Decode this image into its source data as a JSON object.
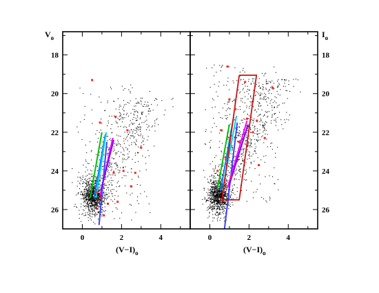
{
  "chart_data": [
    {
      "type": "scatter",
      "panel": "left",
      "xlabel": "(V−I)",
      "xlabel_sub": "o",
      "ylabel": "V",
      "ylabel_sub": "o",
      "ylabel_side": "left",
      "xlim": [
        -1,
        5.5
      ],
      "ylim": [
        27,
        16.8
      ],
      "y_inverted": true,
      "xticks": [
        0,
        2,
        4
      ],
      "yticks": [
        18,
        20,
        22,
        24,
        26
      ],
      "field_stars": {
        "color": "#000000",
        "count_approx": 1500,
        "distribution": "dense clump near (V-I)=0.4-0.9, V=24-26, fanning upward along the RGB to V~20"
      },
      "highlighted_stars": {
        "color": "#ff2020",
        "points": [
          [
            0.5,
            19.3
          ],
          [
            1.7,
            21.2
          ],
          [
            2.3,
            21.9
          ],
          [
            0.9,
            21.5
          ],
          [
            3.0,
            22.8
          ],
          [
            1.6,
            24.1
          ],
          [
            2.1,
            24.0
          ],
          [
            2.7,
            24.1
          ],
          [
            2.5,
            24.8
          ],
          [
            1.8,
            25.6
          ],
          [
            0.7,
            25.1
          ],
          [
            0.9,
            25.4
          ],
          [
            0.7,
            25.9
          ],
          [
            1.1,
            26.3
          ],
          [
            1.3,
            25.7
          ]
        ]
      },
      "isochrones": [
        {
          "color": "#00c000",
          "points": [
            [
              0.4,
              25.4
            ],
            [
              1.0,
              22.0
            ]
          ]
        },
        {
          "color": "#0080ff",
          "points": [
            [
              0.6,
              25.4
            ],
            [
              1.18,
              22.1
            ]
          ]
        },
        {
          "color": "#00d8d8",
          "points": [
            [
              0.7,
              25.4
            ],
            [
              1.22,
              22.0
            ]
          ]
        },
        {
          "color": "#4040ff",
          "points": [
            [
              0.85,
              26.8
            ],
            [
              1.25,
              22.5
            ]
          ]
        },
        {
          "color": "#ff00ff",
          "points": [
            [
              0.9,
              25.3
            ],
            [
              1.55,
              22.3
            ]
          ]
        },
        {
          "color": "#8000ff",
          "points": [
            [
              0.95,
              25.0
            ],
            [
              1.6,
              22.4
            ]
          ]
        }
      ]
    },
    {
      "type": "scatter",
      "panel": "right",
      "xlabel": "(V−I)",
      "xlabel_sub": "o",
      "ylabel": "I",
      "ylabel_sub": "o",
      "ylabel_side": "right",
      "xlim": [
        -1,
        5.5
      ],
      "ylim": [
        27,
        16.8
      ],
      "y_inverted": true,
      "xticks": [
        0,
        2,
        4
      ],
      "yticks": [
        18,
        20,
        22,
        24,
        26
      ],
      "field_stars": {
        "color": "#000000",
        "count_approx": 1700,
        "distribution": "dense clump near (V-I)=0.2-0.8, I=24-26, spreading up along a diagonal toward I~19"
      },
      "highlighted_stars": {
        "color": "#ff2020",
        "points": [
          [
            0.9,
            18.6
          ],
          [
            1.8,
            19.4
          ],
          [
            3.2,
            19.7
          ],
          [
            1.0,
            20.3
          ],
          [
            1.3,
            20.8
          ],
          [
            1.9,
            21.3
          ],
          [
            2.4,
            21.4
          ],
          [
            0.6,
            21.9
          ],
          [
            2.2,
            22.0
          ],
          [
            2.8,
            22.3
          ],
          [
            1.5,
            22.5
          ],
          [
            0.8,
            23.3
          ],
          [
            2.5,
            23.7
          ],
          [
            0.4,
            24.0
          ],
          [
            1.1,
            24.3
          ],
          [
            0.7,
            25.0
          ],
          [
            0.6,
            25.5
          ]
        ]
      },
      "selection_box": {
        "color": "#cc1111",
        "points": [
          [
            1.5,
            19.05
          ],
          [
            2.38,
            19.05
          ],
          [
            1.5,
            25.5
          ],
          [
            0.62,
            25.5
          ],
          [
            1.5,
            19.05
          ]
        ]
      },
      "isochrones": [
        {
          "color": "#00c000",
          "points": [
            [
              0.4,
              24.9
            ],
            [
              1.0,
              21.6
            ]
          ]
        },
        {
          "color": "#0080ff",
          "points": [
            [
              0.55,
              25.0
            ],
            [
              1.2,
              21.3
            ]
          ]
        },
        {
          "color": "#00d8d8",
          "points": [
            [
              0.65,
              25.0
            ],
            [
              1.35,
              21.2
            ]
          ]
        },
        {
          "color": "#4040ff",
          "points": [
            [
              0.75,
              27.0
            ],
            [
              1.4,
              21.5
            ]
          ]
        },
        {
          "color": "#ff00ff",
          "points": [
            [
              0.9,
              24.9
            ],
            [
              1.9,
              21.4
            ]
          ]
        },
        {
          "color": "#8000ff",
          "points": [
            [
              1.0,
              24.7
            ],
            [
              1.95,
              21.6
            ]
          ]
        }
      ]
    }
  ]
}
